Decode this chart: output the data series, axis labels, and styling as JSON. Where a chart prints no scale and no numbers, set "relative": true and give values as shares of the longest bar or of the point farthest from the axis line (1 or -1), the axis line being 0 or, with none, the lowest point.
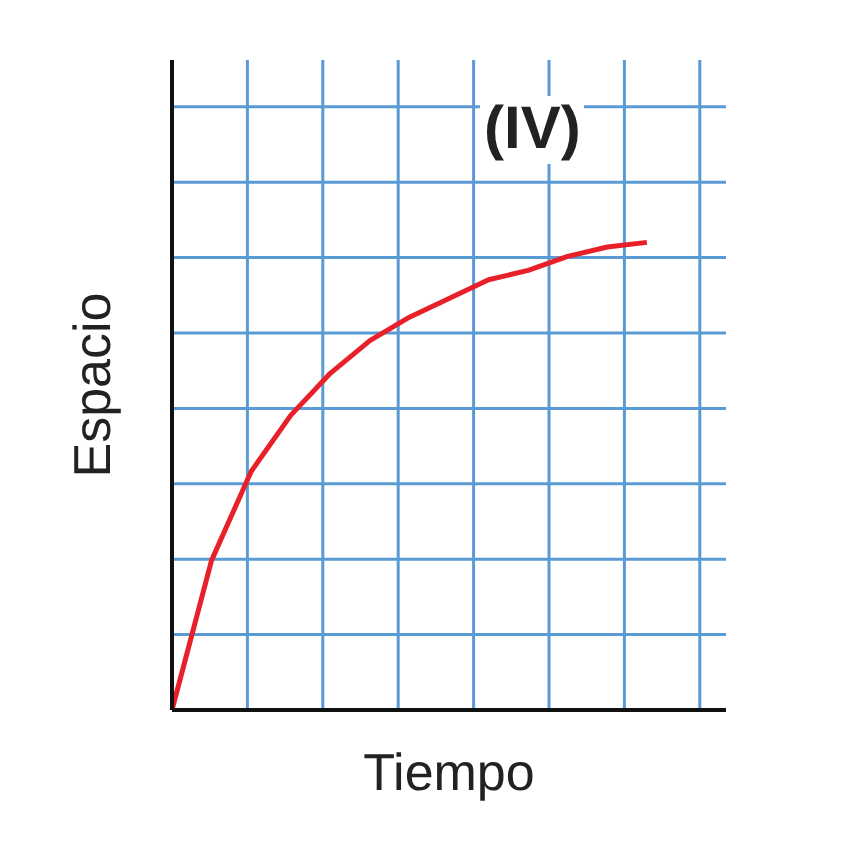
{
  "chart_data": {
    "type": "line",
    "relative": true,
    "xlabel": "Tiempo",
    "ylabel": "Espacio",
    "annotations": [
      "(IV)"
    ],
    "grid": true,
    "marker": "none",
    "categories": [
      null,
      null,
      null,
      null,
      null,
      null,
      null,
      null,
      null,
      null,
      null,
      null,
      null,
      null,
      null
    ],
    "series": [
      {
        "color": "#e8202a",
        "values": [
          0,
          0.32,
          0.51,
          0.63,
          0.72,
          0.79,
          0.84,
          0.88,
          0.92,
          0.94,
          0.97,
          0.99,
          1,
          null,
          null
        ]
      }
    ]
  }
}
